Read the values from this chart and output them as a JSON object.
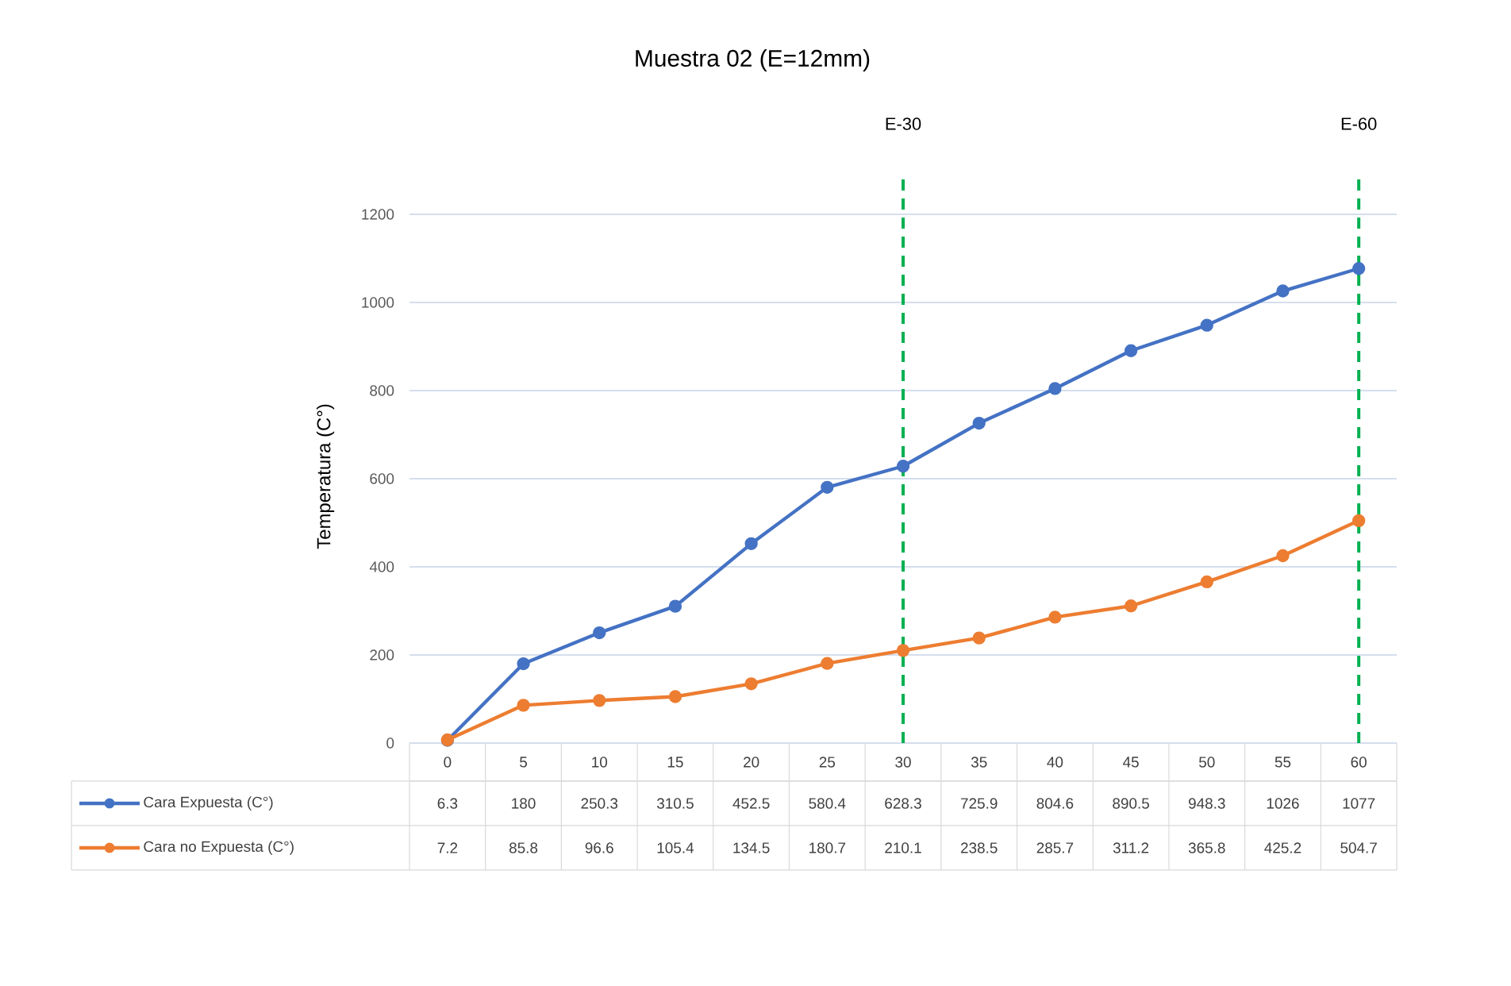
{
  "chart_data": {
    "type": "line",
    "title": "Muestra 02 (E=12mm)",
    "ylabel": "Temperatura (C°)",
    "categories": [
      "0",
      "5",
      "10",
      "15",
      "20",
      "25",
      "30",
      "35",
      "40",
      "45",
      "50",
      "55",
      "60"
    ],
    "series": [
      {
        "name": "Cara Expuesta (C°)",
        "color": "#4472c4",
        "values": [
          6.3,
          180,
          250.3,
          310.5,
          452.5,
          580.4,
          628.3,
          725.9,
          804.6,
          890.5,
          948.3,
          1026,
          1077
        ]
      },
      {
        "name": "Cara no Expuesta   (C°)",
        "color": "#ed7d31",
        "values": [
          7.2,
          85.8,
          96.6,
          105.4,
          134.5,
          180.7,
          210.1,
          238.5,
          285.7,
          311.2,
          365.8,
          425.2,
          504.7
        ]
      }
    ],
    "ylim": [
      0,
      1200
    ],
    "yticks": [
      0,
      200,
      400,
      600,
      800,
      1000,
      1200
    ],
    "grid": "y",
    "legend": "bottom",
    "marker": "circle",
    "line_style": "solid",
    "data_labels": true,
    "ref_lines": [
      {
        "axis": "x",
        "value": "30",
        "label": "E-30",
        "color": "#00b050",
        "line_style": "dashed"
      },
      {
        "axis": "x",
        "value": "60",
        "label": "E-60",
        "color": "#00b050",
        "line_style": "dashed"
      }
    ]
  }
}
